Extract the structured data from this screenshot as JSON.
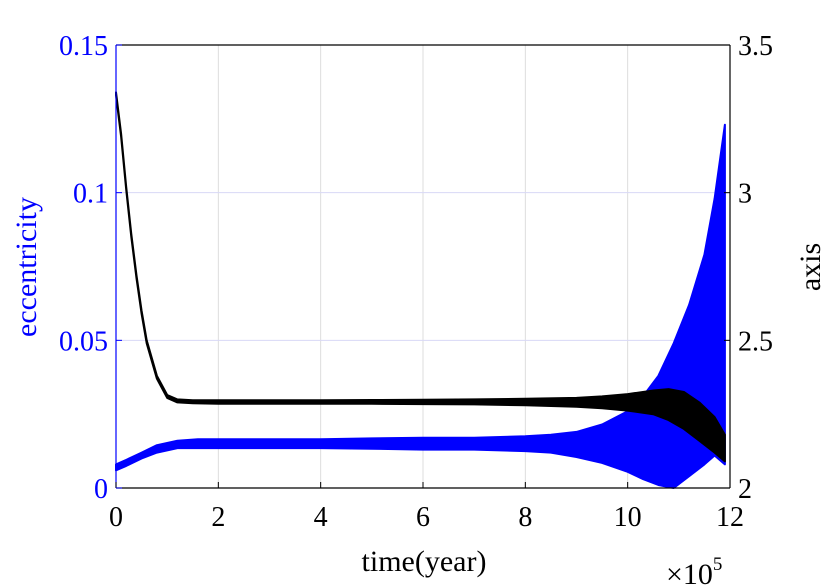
{
  "chart_data": {
    "type": "line",
    "xlabel": "time(year)",
    "x_multiplier_label": "×10",
    "x_multiplier_exponent": "5",
    "x_ticks": [
      0,
      2,
      4,
      6,
      8,
      10,
      12
    ],
    "xlim": [
      0,
      12
    ],
    "y_left": {
      "label": "eccentricity",
      "color": "#0000ff",
      "ticks": [
        "0",
        "0.05",
        "0.1",
        "0.15"
      ],
      "tick_values": [
        0,
        0.05,
        0.1,
        0.15
      ],
      "ylim": [
        0,
        0.15
      ]
    },
    "y_right": {
      "label": "axis",
      "color": "#000000",
      "ticks": [
        "2",
        "2.5",
        "3",
        "3.5"
      ],
      "tick_values": [
        2,
        2.5,
        3,
        3.5
      ],
      "ylim": [
        2,
        3.5
      ]
    },
    "grid": true,
    "series": [
      {
        "axis": "left",
        "color": "#0000ff",
        "x": [
          0,
          0.2,
          0.5,
          0.8,
          1.2,
          1.6,
          2,
          3,
          4,
          5,
          6,
          7,
          8,
          8.5,
          9,
          9.5,
          10,
          10.3,
          10.6,
          10.9,
          11.2,
          11.5,
          11.7,
          11.9
        ],
        "upper": [
          0.008,
          0.0095,
          0.012,
          0.0145,
          0.016,
          0.0165,
          0.0165,
          0.0165,
          0.0165,
          0.0168,
          0.017,
          0.017,
          0.0175,
          0.018,
          0.019,
          0.0215,
          0.026,
          0.031,
          0.038,
          0.049,
          0.062,
          0.079,
          0.098,
          0.123
        ],
        "lower": [
          0.006,
          0.0075,
          0.01,
          0.012,
          0.0135,
          0.0135,
          0.0135,
          0.0135,
          0.0135,
          0.0133,
          0.013,
          0.013,
          0.0125,
          0.012,
          0.0105,
          0.0085,
          0.0055,
          0.003,
          0.001,
          0.0,
          0.004,
          0.008,
          0.011,
          0.008
        ]
      },
      {
        "axis": "right",
        "color": "#000000",
        "x": [
          0,
          0.1,
          0.2,
          0.3,
          0.4,
          0.5,
          0.6,
          0.8,
          1.0,
          1.2,
          1.5,
          2,
          3,
          4,
          5,
          6,
          7,
          8,
          9,
          9.5,
          10,
          10.5,
          10.8,
          11.1,
          11.4,
          11.7,
          11.9
        ],
        "upper": [
          3.34,
          3.2,
          3.02,
          2.86,
          2.72,
          2.6,
          2.5,
          2.38,
          2.315,
          2.3,
          2.297,
          2.297,
          2.297,
          2.297,
          2.298,
          2.299,
          2.3,
          2.302,
          2.305,
          2.31,
          2.318,
          2.33,
          2.335,
          2.325,
          2.29,
          2.24,
          2.18
        ],
        "lower": [
          3.33,
          3.19,
          3.01,
          2.85,
          2.71,
          2.59,
          2.49,
          2.37,
          2.305,
          2.29,
          2.287,
          2.285,
          2.285,
          2.285,
          2.285,
          2.284,
          2.283,
          2.28,
          2.275,
          2.27,
          2.262,
          2.25,
          2.23,
          2.2,
          2.16,
          2.12,
          2.09
        ]
      }
    ]
  }
}
